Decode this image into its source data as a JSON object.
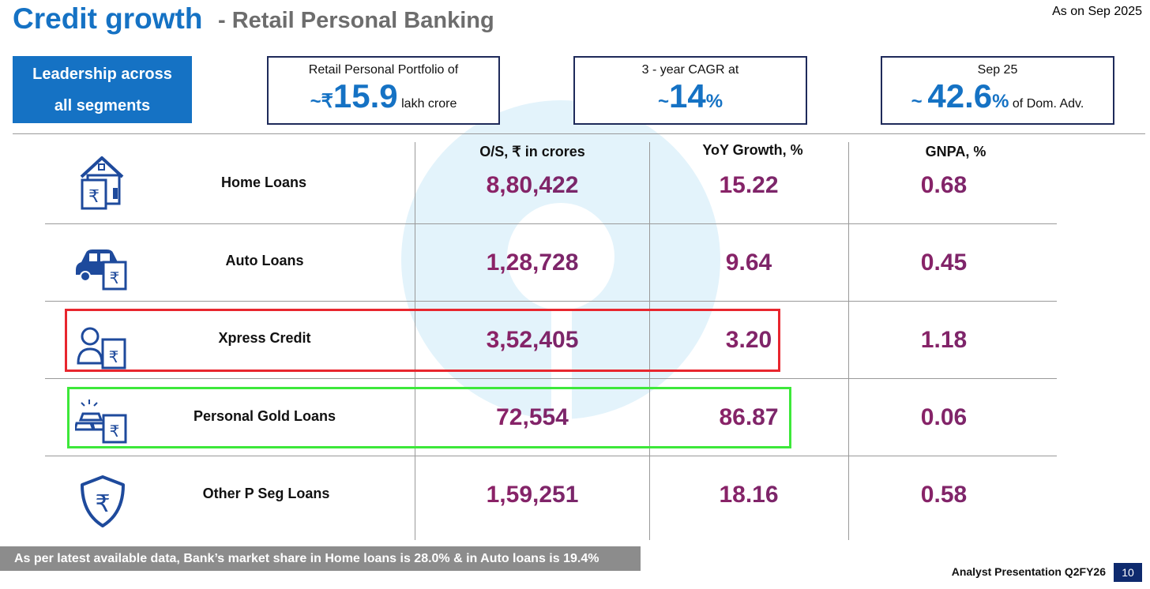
{
  "header": {
    "title": "Credit growth",
    "subtitle": "- Retail Personal Banking",
    "as_on": "As on Sep 2025"
  },
  "leadership": {
    "line1": "Leadership across",
    "line2": "all segments"
  },
  "kpis": [
    {
      "label": "Retail Personal Portfolio of",
      "prefix": "~₹",
      "value": "15.9",
      "unit": "",
      "suffix": " lakh crore"
    },
    {
      "label": "3 - year CAGR at",
      "prefix": "~",
      "value": "14",
      "unit": "%",
      "suffix": ""
    },
    {
      "label": "Sep 25",
      "prefix": "~ ",
      "value": "42.6",
      "unit": "%",
      "suffix": " of Dom. Adv."
    }
  ],
  "table": {
    "headers": [
      "O/S, ₹ in crores",
      "YoY Growth, %",
      "GNPA, %"
    ],
    "rows": [
      {
        "label": "Home Loans",
        "icon": "home-loan-icon",
        "os": "8,80,422",
        "yoy": "15.22",
        "gnpa": "0.68"
      },
      {
        "label": "Auto Loans",
        "icon": "car-loan-icon",
        "os": "1,28,728",
        "yoy": "9.64",
        "gnpa": "0.45"
      },
      {
        "label": "Xpress Credit",
        "icon": "person-loan-icon",
        "os": "3,52,405",
        "yoy": "3.20",
        "gnpa": "1.18"
      },
      {
        "label": "Personal Gold Loans",
        "icon": "gold-loan-icon",
        "os": "72,554",
        "yoy": "86.87",
        "gnpa": "0.06"
      },
      {
        "label": "Other P Seg Loans",
        "icon": "rupee-shield-icon",
        "os": "1,59,251",
        "yoy": "18.16",
        "gnpa": "0.58"
      }
    ]
  },
  "footer": {
    "note": "As per latest available data, Bank’s market share in Home loans is 28.0% & in Auto loans is 19.4%",
    "brand": "Analyst Presentation Q2FY26",
    "page": "10"
  },
  "colors": {
    "accent_blue": "#1572c4",
    "value_gradient": [
      "#9b1e63",
      "#6a2a6e"
    ],
    "highlight_red": "#e8262e",
    "highlight_green": "#3de83a",
    "icon_blue": "#1e4a9c"
  }
}
